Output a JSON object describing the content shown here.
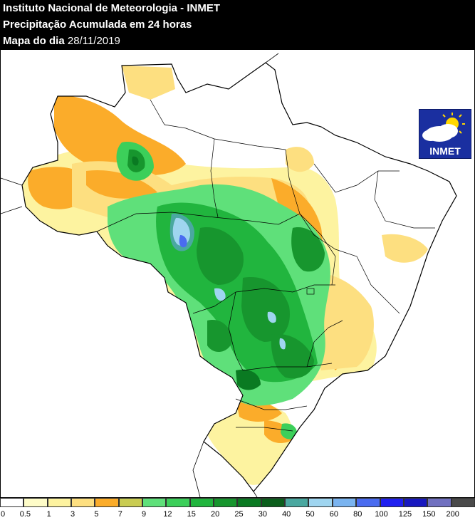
{
  "header": {
    "line1": "Instituto Nacional de Meteorologia - INMET",
    "line2": "Precipitação Acumulada em 24 horas",
    "line3_label": "Mapa do dia",
    "line3_date": "28/11/2019"
  },
  "logo": {
    "text": "INMET",
    "icon": "sun-cloud-icon",
    "bg_color": "#1a2fa0"
  },
  "legend": {
    "colors": [
      "#ffffff",
      "#fefcc8",
      "#fdf3a0",
      "#fddf80",
      "#fbac2a",
      "#c9cc52",
      "#5fe07a",
      "#3ccf5a",
      "#21b53e",
      "#17962e",
      "#0a7a22",
      "#0b5e1c",
      "#4aa8a0",
      "#9fd5f0",
      "#7ab4f0",
      "#4a6cf0",
      "#2020f0",
      "#1818c0",
      "#7070c0",
      "#4a4a4a"
    ],
    "labels": [
      "0",
      "0.5",
      "1",
      "3",
      "5",
      "7",
      "9",
      "12",
      "15",
      "20",
      "25",
      "30",
      "40",
      "50",
      "60",
      "80",
      "100",
      "125",
      "150",
      "200"
    ]
  },
  "map": {
    "region": "Brasil",
    "colors": {
      "land": "#ffffff",
      "very_light": "#fefcc8",
      "light_yellow": "#fdf3a0",
      "yellow": "#fddf80",
      "orange": "#fbac2a",
      "olive": "#c9cc52",
      "light_green": "#5fe07a",
      "green": "#3ccf5a",
      "mid_green": "#21b53e",
      "dark_green": "#17962e",
      "darker_green": "#0a7a22",
      "teal": "#4aa8a0",
      "light_blue": "#9fd5f0",
      "blue": "#4a6cf0"
    }
  }
}
